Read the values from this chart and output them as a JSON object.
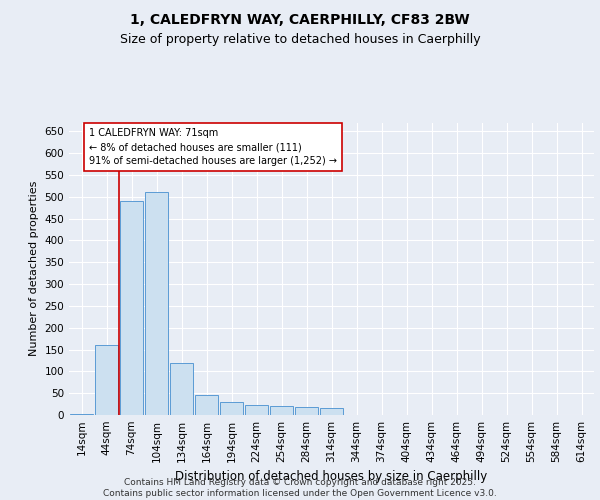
{
  "title": "1, CALEDFRYN WAY, CAERPHILLY, CF83 2BW",
  "subtitle": "Size of property relative to detached houses in Caerphilly",
  "xlabel": "Distribution of detached houses by size in Caerphilly",
  "ylabel": "Number of detached properties",
  "footer": "Contains HM Land Registry data © Crown copyright and database right 2025.\nContains public sector information licensed under the Open Government Licence v3.0.",
  "bins": [
    "14sqm",
    "44sqm",
    "74sqm",
    "104sqm",
    "134sqm",
    "164sqm",
    "194sqm",
    "224sqm",
    "254sqm",
    "284sqm",
    "314sqm",
    "344sqm",
    "374sqm",
    "404sqm",
    "434sqm",
    "464sqm",
    "494sqm",
    "524sqm",
    "554sqm",
    "584sqm",
    "614sqm"
  ],
  "values": [
    2,
    160,
    490,
    510,
    120,
    45,
    30,
    22,
    20,
    18,
    16,
    0,
    0,
    0,
    0,
    0,
    0,
    0,
    0,
    0,
    0
  ],
  "bar_color": "#cce0f0",
  "bar_edge_color": "#5b9bd5",
  "annotation_text": "1 CALEDFRYN WAY: 71sqm\n← 8% of detached houses are smaller (111)\n91% of semi-detached houses are larger (1,252) →",
  "annotation_box_color": "#ffffff",
  "annotation_box_edge": "#cc0000",
  "vline_color": "#cc0000",
  "ylim": [
    0,
    670
  ],
  "yticks": [
    0,
    50,
    100,
    150,
    200,
    250,
    300,
    350,
    400,
    450,
    500,
    550,
    600,
    650
  ],
  "background_color": "#e8edf5",
  "plot_bg_color": "#e8edf5",
  "grid_color": "#ffffff",
  "title_fontsize": 10,
  "subtitle_fontsize": 9,
  "ylabel_fontsize": 8,
  "xlabel_fontsize": 8.5,
  "footer_fontsize": 6.5,
  "tick_fontsize": 7.5,
  "annot_fontsize": 7
}
